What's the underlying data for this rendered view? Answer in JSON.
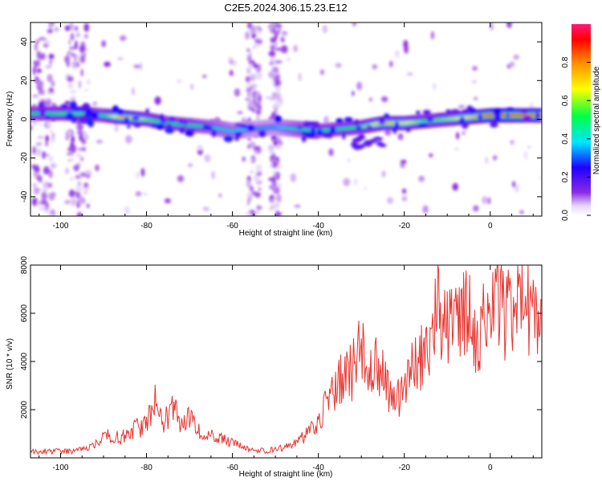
{
  "title": "C2E5.2024.306.15.23.E12",
  "colors": {
    "line": "#e8332e",
    "axis": "#000000",
    "background": "#ffffff"
  },
  "chart_data": [
    {
      "type": "heatmap",
      "xlabel": "Height of straight line (km)",
      "ylabel": "Frequency (Hz)",
      "xlim": [
        -107,
        12
      ],
      "ylim": [
        -50,
        50
      ],
      "x_ticks": [
        -100,
        -80,
        -60,
        -40,
        -20,
        0
      ],
      "x_tick_labels": [
        "-100",
        "-80",
        "-60",
        "-40",
        "-20",
        "0"
      ],
      "y_ticks": [
        -40,
        -20,
        0,
        20,
        40
      ],
      "y_tick_labels": [
        "-40",
        "-20",
        "0",
        "20",
        "40"
      ],
      "colorbar": {
        "label": "Normalized spectral amplitude",
        "range": [
          0,
          1
        ],
        "ticks": [
          0.0,
          0.2,
          0.4,
          0.6,
          0.8
        ],
        "tick_labels": [
          "0.0",
          "0.2",
          "0.4",
          "0.6",
          "0.8"
        ]
      },
      "ridge": {
        "x": [
          -107,
          -100,
          -95,
          -90,
          -85,
          -80,
          -75,
          -70,
          -65,
          -60,
          -55,
          -50,
          -45,
          -40,
          -35,
          -30,
          -25,
          -20,
          -15,
          -10,
          -5,
          0,
          5,
          12
        ],
        "freq": [
          3,
          3,
          3,
          2,
          1,
          0,
          -2,
          -3,
          -4,
          -6,
          -5,
          -4,
          -5,
          -6,
          -5,
          -4,
          -2,
          -2,
          -1,
          0,
          1,
          2,
          2,
          2
        ],
        "amplitude": [
          0.5,
          0.55,
          0.55,
          0.5,
          0.8,
          0.6,
          0.5,
          0.5,
          0.45,
          0.4,
          0.35,
          0.35,
          0.45,
          0.5,
          0.5,
          0.55,
          0.75,
          0.7,
          0.55,
          0.6,
          0.7,
          0.9,
          0.9,
          0.85
        ]
      }
    },
    {
      "type": "line",
      "xlabel": "Height of straight line (km)",
      "ylabel": "SNR (10 * v/v)",
      "xlim": [
        -107,
        12
      ],
      "ylim": [
        0,
        8000
      ],
      "x_ticks": [
        -100,
        -80,
        -60,
        -40,
        -20,
        0
      ],
      "x_tick_labels": [
        "-100",
        "-80",
        "-60",
        "-40",
        "-20",
        "0"
      ],
      "y_ticks": [
        2000,
        4000,
        6000,
        8000
      ],
      "y_tick_labels": [
        "2000",
        "4000",
        "6000",
        "8000"
      ],
      "series": [
        {
          "x": [
            -107,
            -102,
            -97,
            -92,
            -89,
            -86,
            -83,
            -80,
            -78,
            -76,
            -74,
            -72,
            -70,
            -67,
            -64,
            -60,
            -56,
            -52,
            -49,
            -46,
            -43,
            -40,
            -38,
            -36,
            -34,
            -32,
            -30,
            -28,
            -26,
            -24,
            -22,
            -20,
            -18,
            -16,
            -14,
            -12,
            -11,
            -10,
            -8,
            -6,
            -4,
            -2,
            0,
            2,
            4,
            6,
            8,
            10,
            12
          ],
          "y": [
            250,
            280,
            260,
            520,
            1000,
            850,
            1200,
            1300,
            2400,
            1500,
            2100,
            1400,
            1600,
            1100,
            900,
            600,
            350,
            300,
            400,
            550,
            900,
            1600,
            2200,
            3000,
            3300,
            3600,
            4600,
            3500,
            4000,
            2800,
            2300,
            3000,
            3600,
            4300,
            4500,
            7200,
            5200,
            5400,
            5800,
            6200,
            5300,
            5400,
            6100,
            6600,
            6000,
            6700,
            6900,
            6100,
            7100
          ]
        }
      ]
    }
  ]
}
